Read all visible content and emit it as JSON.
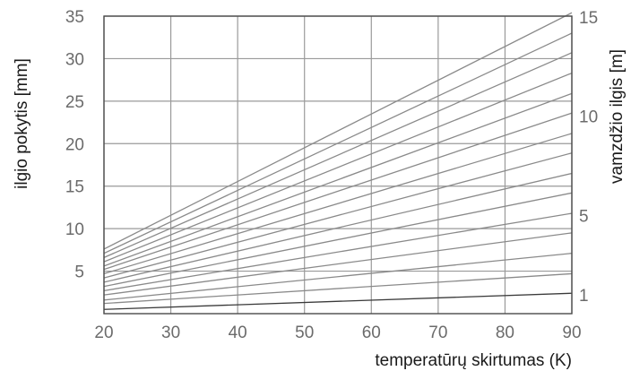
{
  "chart_data": {
    "type": "line",
    "xlabel": "temperatūrų skirtumas (K)",
    "ylabel": "ilgio pokytis  [mm]",
    "y2label": "vamzdžio ilgis  [m]",
    "xlim": [
      20,
      90
    ],
    "ylim": [
      0,
      35
    ],
    "y2lim": [
      0,
      15
    ],
    "x_ticks": [
      "20",
      "30",
      "40",
      "50",
      "60",
      "70",
      "80",
      "90"
    ],
    "y_ticks": [
      "5",
      "10",
      "15",
      "20",
      "25",
      "30",
      "35"
    ],
    "y2_ticks": [
      "1",
      "5",
      "10",
      "15"
    ],
    "grid": true,
    "line_color": "#8a8a8a",
    "grid_color": "#9a9a9a",
    "series": [
      {
        "values": [
          0.5,
          2.4
        ]
      },
      {
        "values": [
          1.2,
          4.7
        ]
      },
      {
        "values": [
          1.6,
          7.1
        ]
      },
      {
        "values": [
          2.2,
          9.5
        ]
      },
      {
        "values": [
          2.7,
          11.8
        ]
      },
      {
        "values": [
          3.2,
          14.2
        ]
      },
      {
        "values": [
          3.7,
          16.5
        ]
      },
      {
        "values": [
          4.2,
          18.9
        ]
      },
      {
        "values": [
          4.7,
          21.2
        ]
      },
      {
        "values": [
          5.2,
          23.6
        ]
      },
      {
        "values": [
          5.6,
          25.9
        ]
      },
      {
        "values": [
          6.1,
          28.3
        ]
      },
      {
        "values": [
          6.6,
          30.7
        ]
      },
      {
        "values": [
          7.1,
          33.0
        ]
      },
      {
        "values": [
          7.6,
          35.4
        ]
      }
    ]
  }
}
